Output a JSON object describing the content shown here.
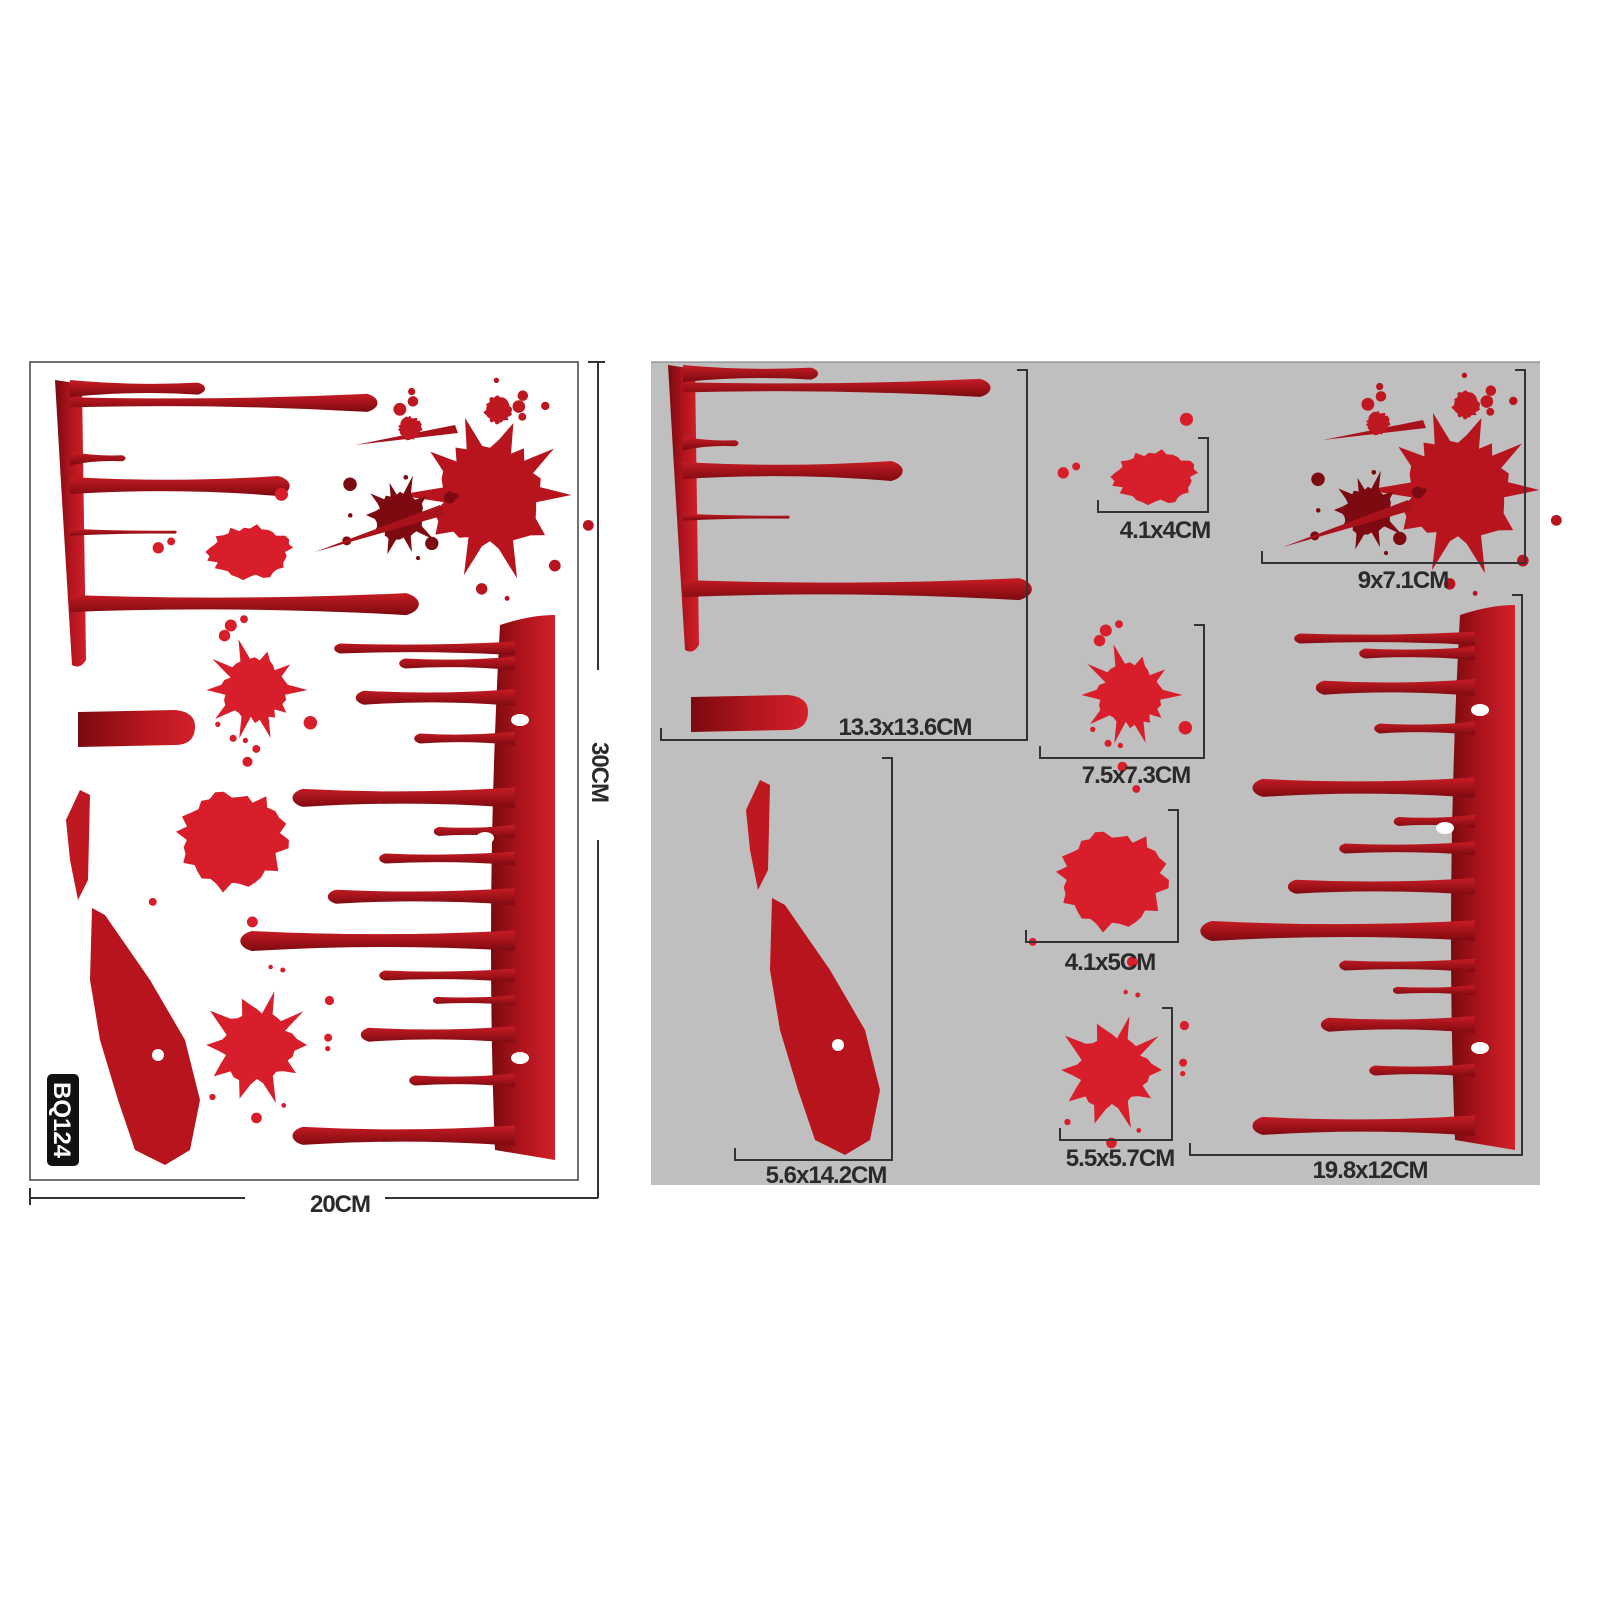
{
  "colors": {
    "blood_dark": "#9e1018",
    "blood_bright": "#d81e2a",
    "panel_gray": "#c0bfc0",
    "line": "#333333"
  },
  "left_sheet": {
    "width_label": "20CM",
    "height_label": "30CM",
    "product_code": "BQ124"
  },
  "right_sheet": {
    "size_labels": {
      "drips_top": "13.3x13.6CM",
      "blob_small": "4.1x4CM",
      "splatter_large": "9x7.1CM",
      "splat_medium": "7.5x7.3CM",
      "blob_medium": "4.1x5CM",
      "smear": "5.6x14.2CM",
      "splat_round": "5.5x5.7CM",
      "drip_band": "19.8x12CM"
    }
  }
}
